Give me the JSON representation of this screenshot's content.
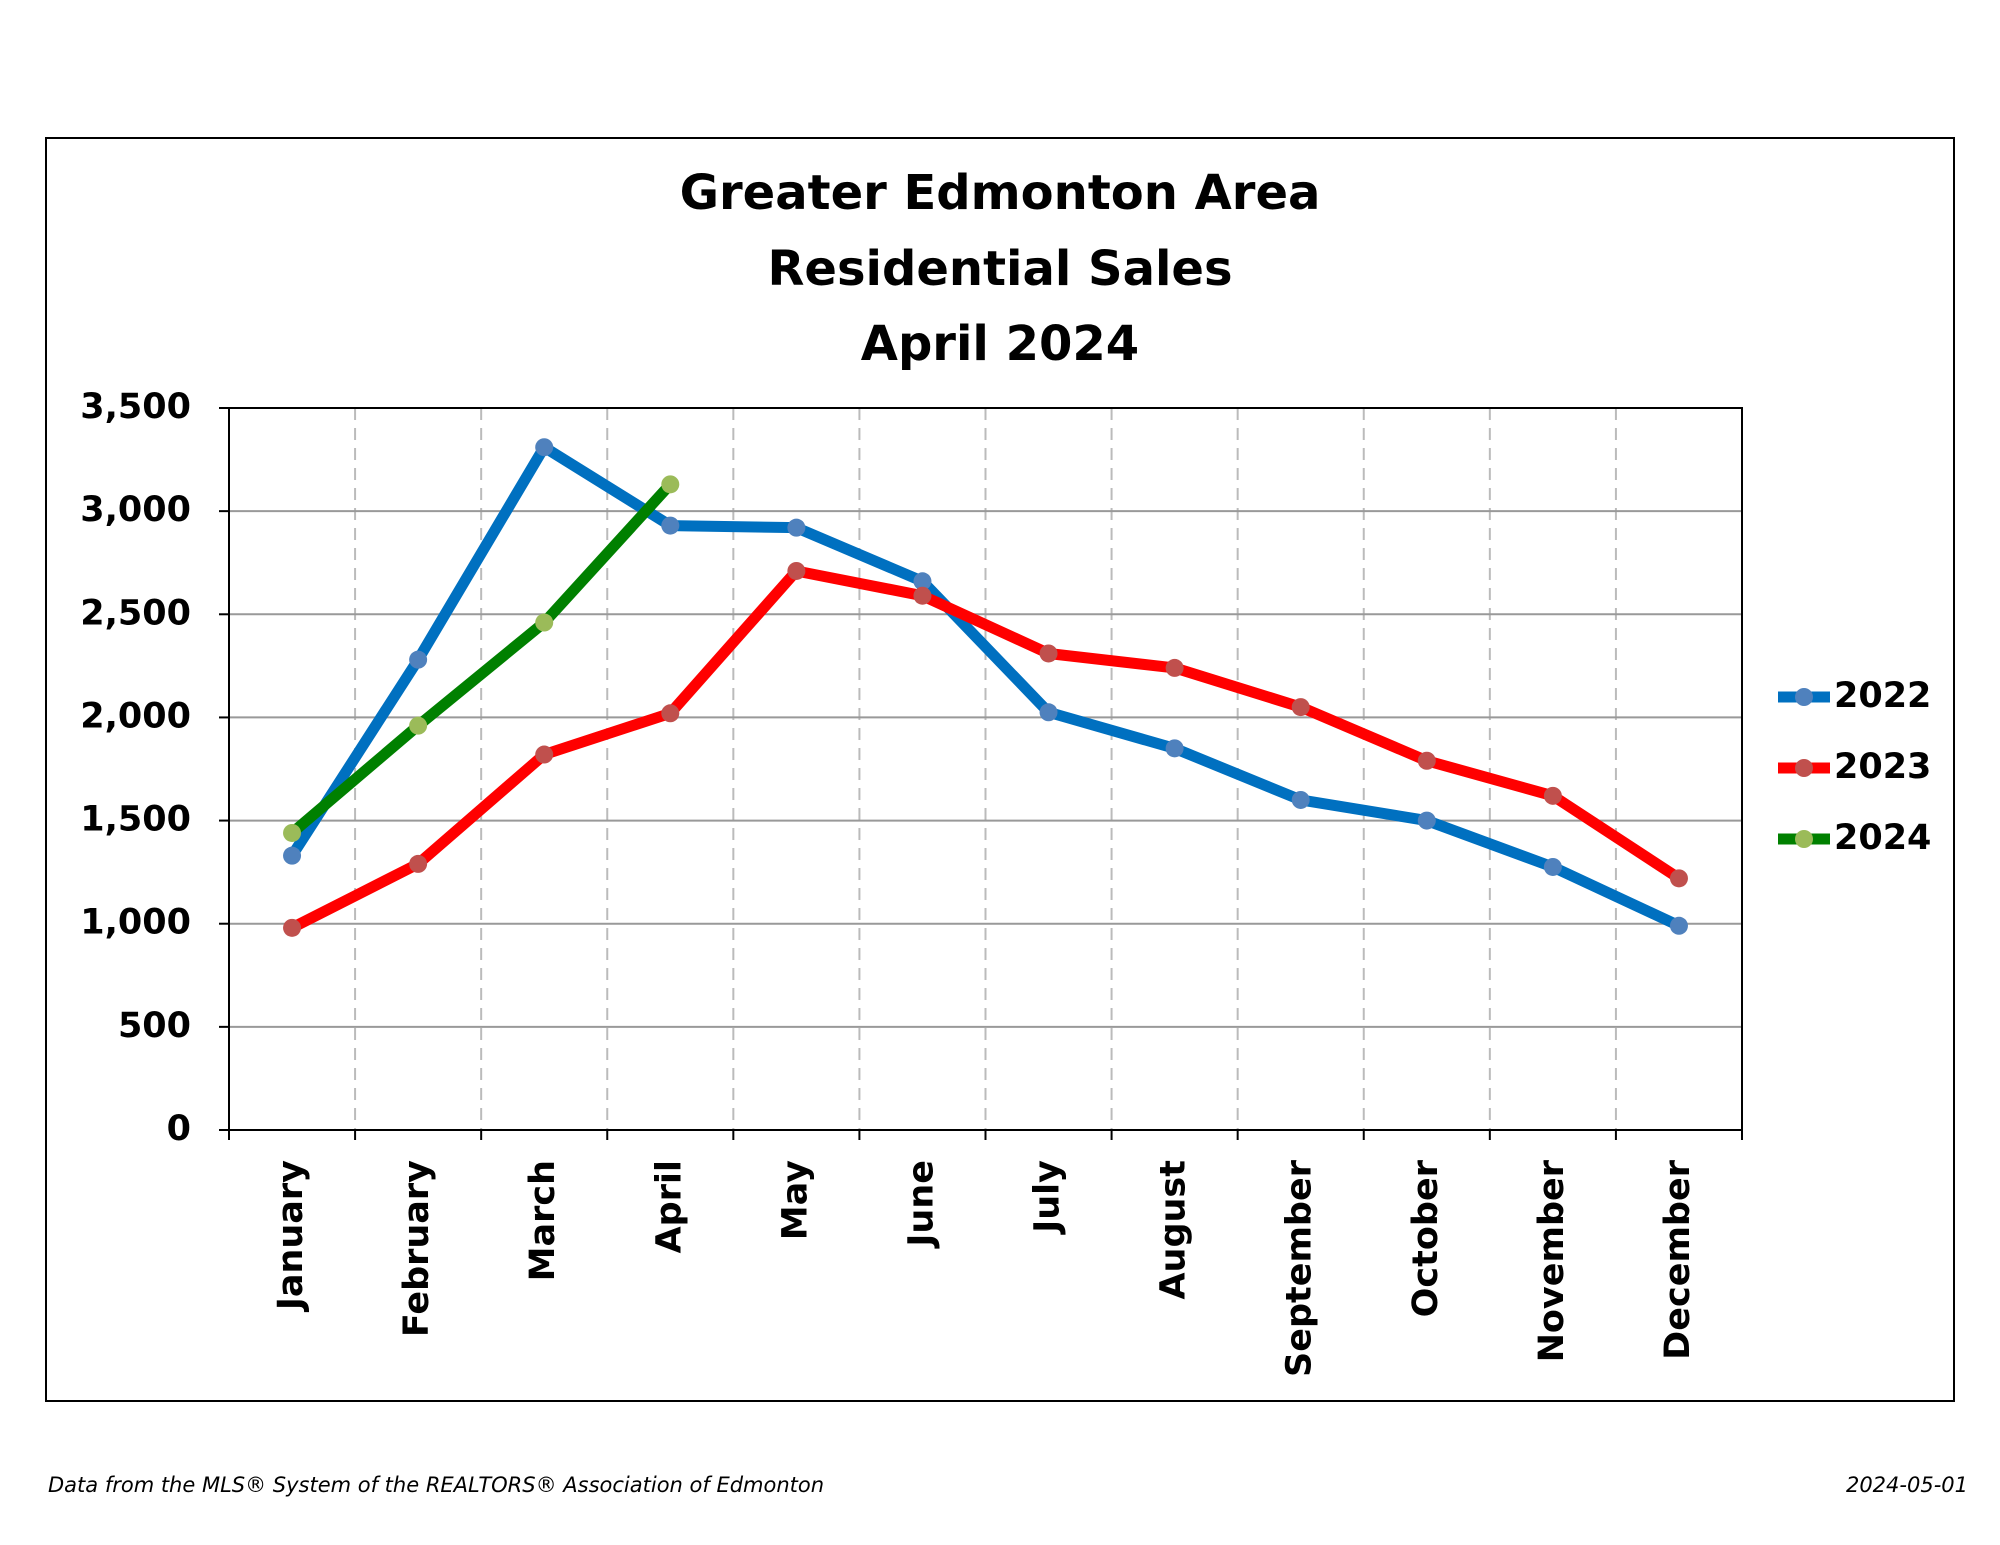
{
  "chart_data": {
    "type": "line",
    "title": [
      "Greater Edmonton Area",
      "Residential Sales",
      "April 2024"
    ],
    "categories": [
      "January",
      "February",
      "March",
      "April",
      "May",
      "June",
      "July",
      "August",
      "September",
      "October",
      "November",
      "December"
    ],
    "series": [
      {
        "name": "2022",
        "color": "#0070c0",
        "marker_color": "#4f81bd",
        "values": [
          1330,
          2280,
          3310,
          2930,
          2920,
          2660,
          2025,
          1850,
          1600,
          1500,
          1275,
          990
        ]
      },
      {
        "name": "2023",
        "color": "#ff0000",
        "marker_color": "#c0504d",
        "values": [
          980,
          1290,
          1820,
          2020,
          2710,
          2590,
          2310,
          2240,
          2050,
          1790,
          1620,
          1220
        ]
      },
      {
        "name": "2024",
        "color": "#008000",
        "marker_color": "#9bbb59",
        "values": [
          1440,
          1960,
          2460,
          3130,
          null,
          null,
          null,
          null,
          null,
          null,
          null,
          null
        ]
      }
    ],
    "ylim": [
      0,
      3500
    ],
    "yticks": [
      0,
      500,
      {
        "value": 1000,
        "label": "1,000"
      },
      {
        "value": 1500,
        "label": "1,500"
      },
      {
        "value": 2000,
        "label": "2,000"
      },
      {
        "value": 2500,
        "label": "2,500"
      },
      {
        "value": 3000,
        "label": "3,000"
      },
      {
        "value": 3500,
        "label": "3,500"
      }
    ],
    "grid": true,
    "legend": "right",
    "source_note": "Data from the MLS® System of the REALTORS® Association of Edmonton",
    "date_note": "2024-05-01"
  }
}
